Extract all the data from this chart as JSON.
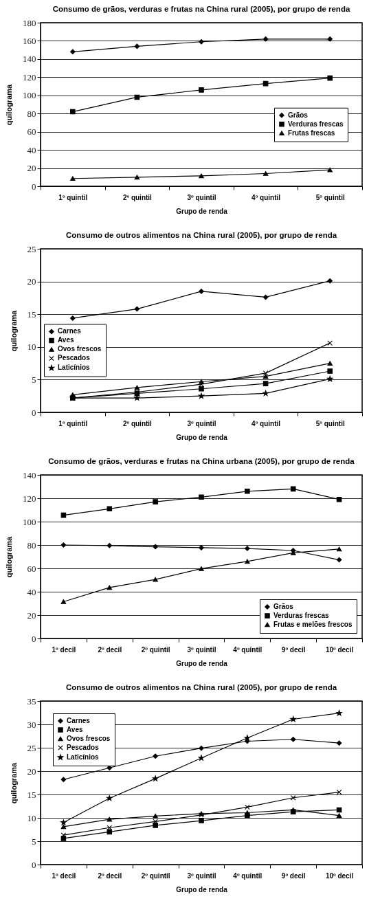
{
  "chart_data": [
    {
      "type": "line",
      "title": "Consumo de grãos, verduras e frutas na China rural (2005), por grupo de renda",
      "xlabel": "Grupo de renda",
      "ylabel": "quilograma",
      "categories": [
        "1º quintil",
        "2º quintil",
        "3º quintil",
        "4º quintil",
        "5º quintil"
      ],
      "ylim": [
        0,
        180
      ],
      "yticks": [
        0,
        20,
        40,
        60,
        80,
        100,
        120,
        140,
        160,
        180
      ],
      "grid": "y",
      "legend": "right",
      "series": [
        {
          "name": "Grãos",
          "color": "#000000",
          "marker": "diamond",
          "values": [
            148,
            154,
            159,
            162,
            162
          ]
        },
        {
          "name": "Verduras frescas",
          "color": "#000000",
          "marker": "square",
          "values": [
            82,
            98,
            106,
            113,
            119
          ]
        },
        {
          "name": "Frutas frescas",
          "color": "#000000",
          "marker": "triangle",
          "values": [
            8.5,
            10,
            11.5,
            14,
            18
          ]
        }
      ]
    },
    {
      "type": "line",
      "title": "Consumo de outros alimentos na China rural (2005), por grupo de renda",
      "xlabel": "Grupo de renda",
      "ylabel": "quilograma",
      "categories": [
        "1º quintil",
        "2º quintil",
        "3º quintil",
        "4º quintil",
        "5º quintil"
      ],
      "ylim": [
        0,
        25
      ],
      "yticks": [
        0,
        5,
        10,
        15,
        20,
        25
      ],
      "grid": "y",
      "legend": "left",
      "series": [
        {
          "name": "Carnes",
          "color": "#000000",
          "marker": "diamond",
          "values": [
            14.4,
            15.8,
            18.5,
            17.6,
            20.1
          ]
        },
        {
          "name": "Aves",
          "color": "#000000",
          "marker": "square",
          "values": [
            2.2,
            2.9,
            3.6,
            4.4,
            6.3
          ]
        },
        {
          "name": "Ovos frescos",
          "color": "#000000",
          "marker": "triangle",
          "values": [
            2.7,
            3.8,
            4.7,
            5.5,
            7.5
          ]
        },
        {
          "name": "Pescados",
          "color": "#000000",
          "marker": "cross",
          "values": [
            2.2,
            3.1,
            4.3,
            6.0,
            10.6
          ]
        },
        {
          "name": "Laticínios",
          "color": "#000000",
          "marker": "star",
          "values": [
            2.2,
            2.2,
            2.5,
            2.9,
            5.1
          ]
        }
      ]
    },
    {
      "type": "line",
      "title": "Consumo de grãos, verduras e frutas na China urbana (2005), por grupo de renda",
      "xlabel": "Grupo de renda",
      "ylabel": "quilograma",
      "categories": [
        "1º decil",
        "2º decil",
        "2º quintil",
        "3º quintil",
        "4º quintil",
        "9º decil",
        "10º decil"
      ],
      "ylim": [
        0,
        140
      ],
      "yticks": [
        0,
        20,
        40,
        60,
        80,
        100,
        120,
        140
      ],
      "grid": "y",
      "legend": "bottom right",
      "series": [
        {
          "name": "Grãos",
          "color": "#000000",
          "marker": "diamond",
          "values": [
            80,
            79.5,
            78.5,
            77.7,
            77,
            75.3,
            67.3
          ]
        },
        {
          "name": "Verduras frescas",
          "color": "#000000",
          "marker": "square",
          "values": [
            105.5,
            111,
            117,
            121,
            126,
            128,
            119
          ]
        },
        {
          "name": "Frutas e melões frescos",
          "color": "#000000",
          "marker": "triangle",
          "values": [
            31.5,
            43.6,
            50.5,
            59.8,
            66,
            73.3,
            76.5
          ]
        }
      ]
    },
    {
      "type": "line",
      "title": "Consumo de outros alimentos na China rural (2005), por grupo de renda",
      "xlabel": "Grupo de renda",
      "ylabel": "quilograma",
      "categories": [
        "1º decil",
        "2º decil",
        "2º quintil",
        "3º quintil",
        "4º quintil",
        "9º decil",
        "10º decil"
      ],
      "ylim": [
        0,
        35
      ],
      "yticks": [
        0,
        5,
        10,
        15,
        20,
        25,
        30,
        35
      ],
      "grid": "y",
      "legend": "top left",
      "series": [
        {
          "name": "Carnes",
          "color": "#000000",
          "marker": "diamond",
          "values": [
            18.2,
            20.7,
            23.2,
            24.9,
            26.4,
            26.8,
            26
          ]
        },
        {
          "name": "Aves",
          "color": "#000000",
          "marker": "square",
          "values": [
            5.6,
            7,
            8.4,
            9.4,
            10.5,
            11.3,
            11.7
          ]
        },
        {
          "name": "Ovos frescos",
          "color": "#000000",
          "marker": "triangle",
          "values": [
            8.1,
            9.7,
            10.4,
            10.9,
            11.1,
            11.7,
            10.5
          ]
        },
        {
          "name": "Pescados",
          "color": "#000000",
          "marker": "cross",
          "values": [
            6.3,
            7.9,
            9.2,
            10.6,
            12.3,
            14.3,
            15.5
          ]
        },
        {
          "name": "Laticínios",
          "color": "#000000",
          "marker": "star",
          "values": [
            9,
            14.2,
            18.4,
            22.8,
            27.1,
            31.1,
            32.4
          ]
        }
      ]
    }
  ]
}
